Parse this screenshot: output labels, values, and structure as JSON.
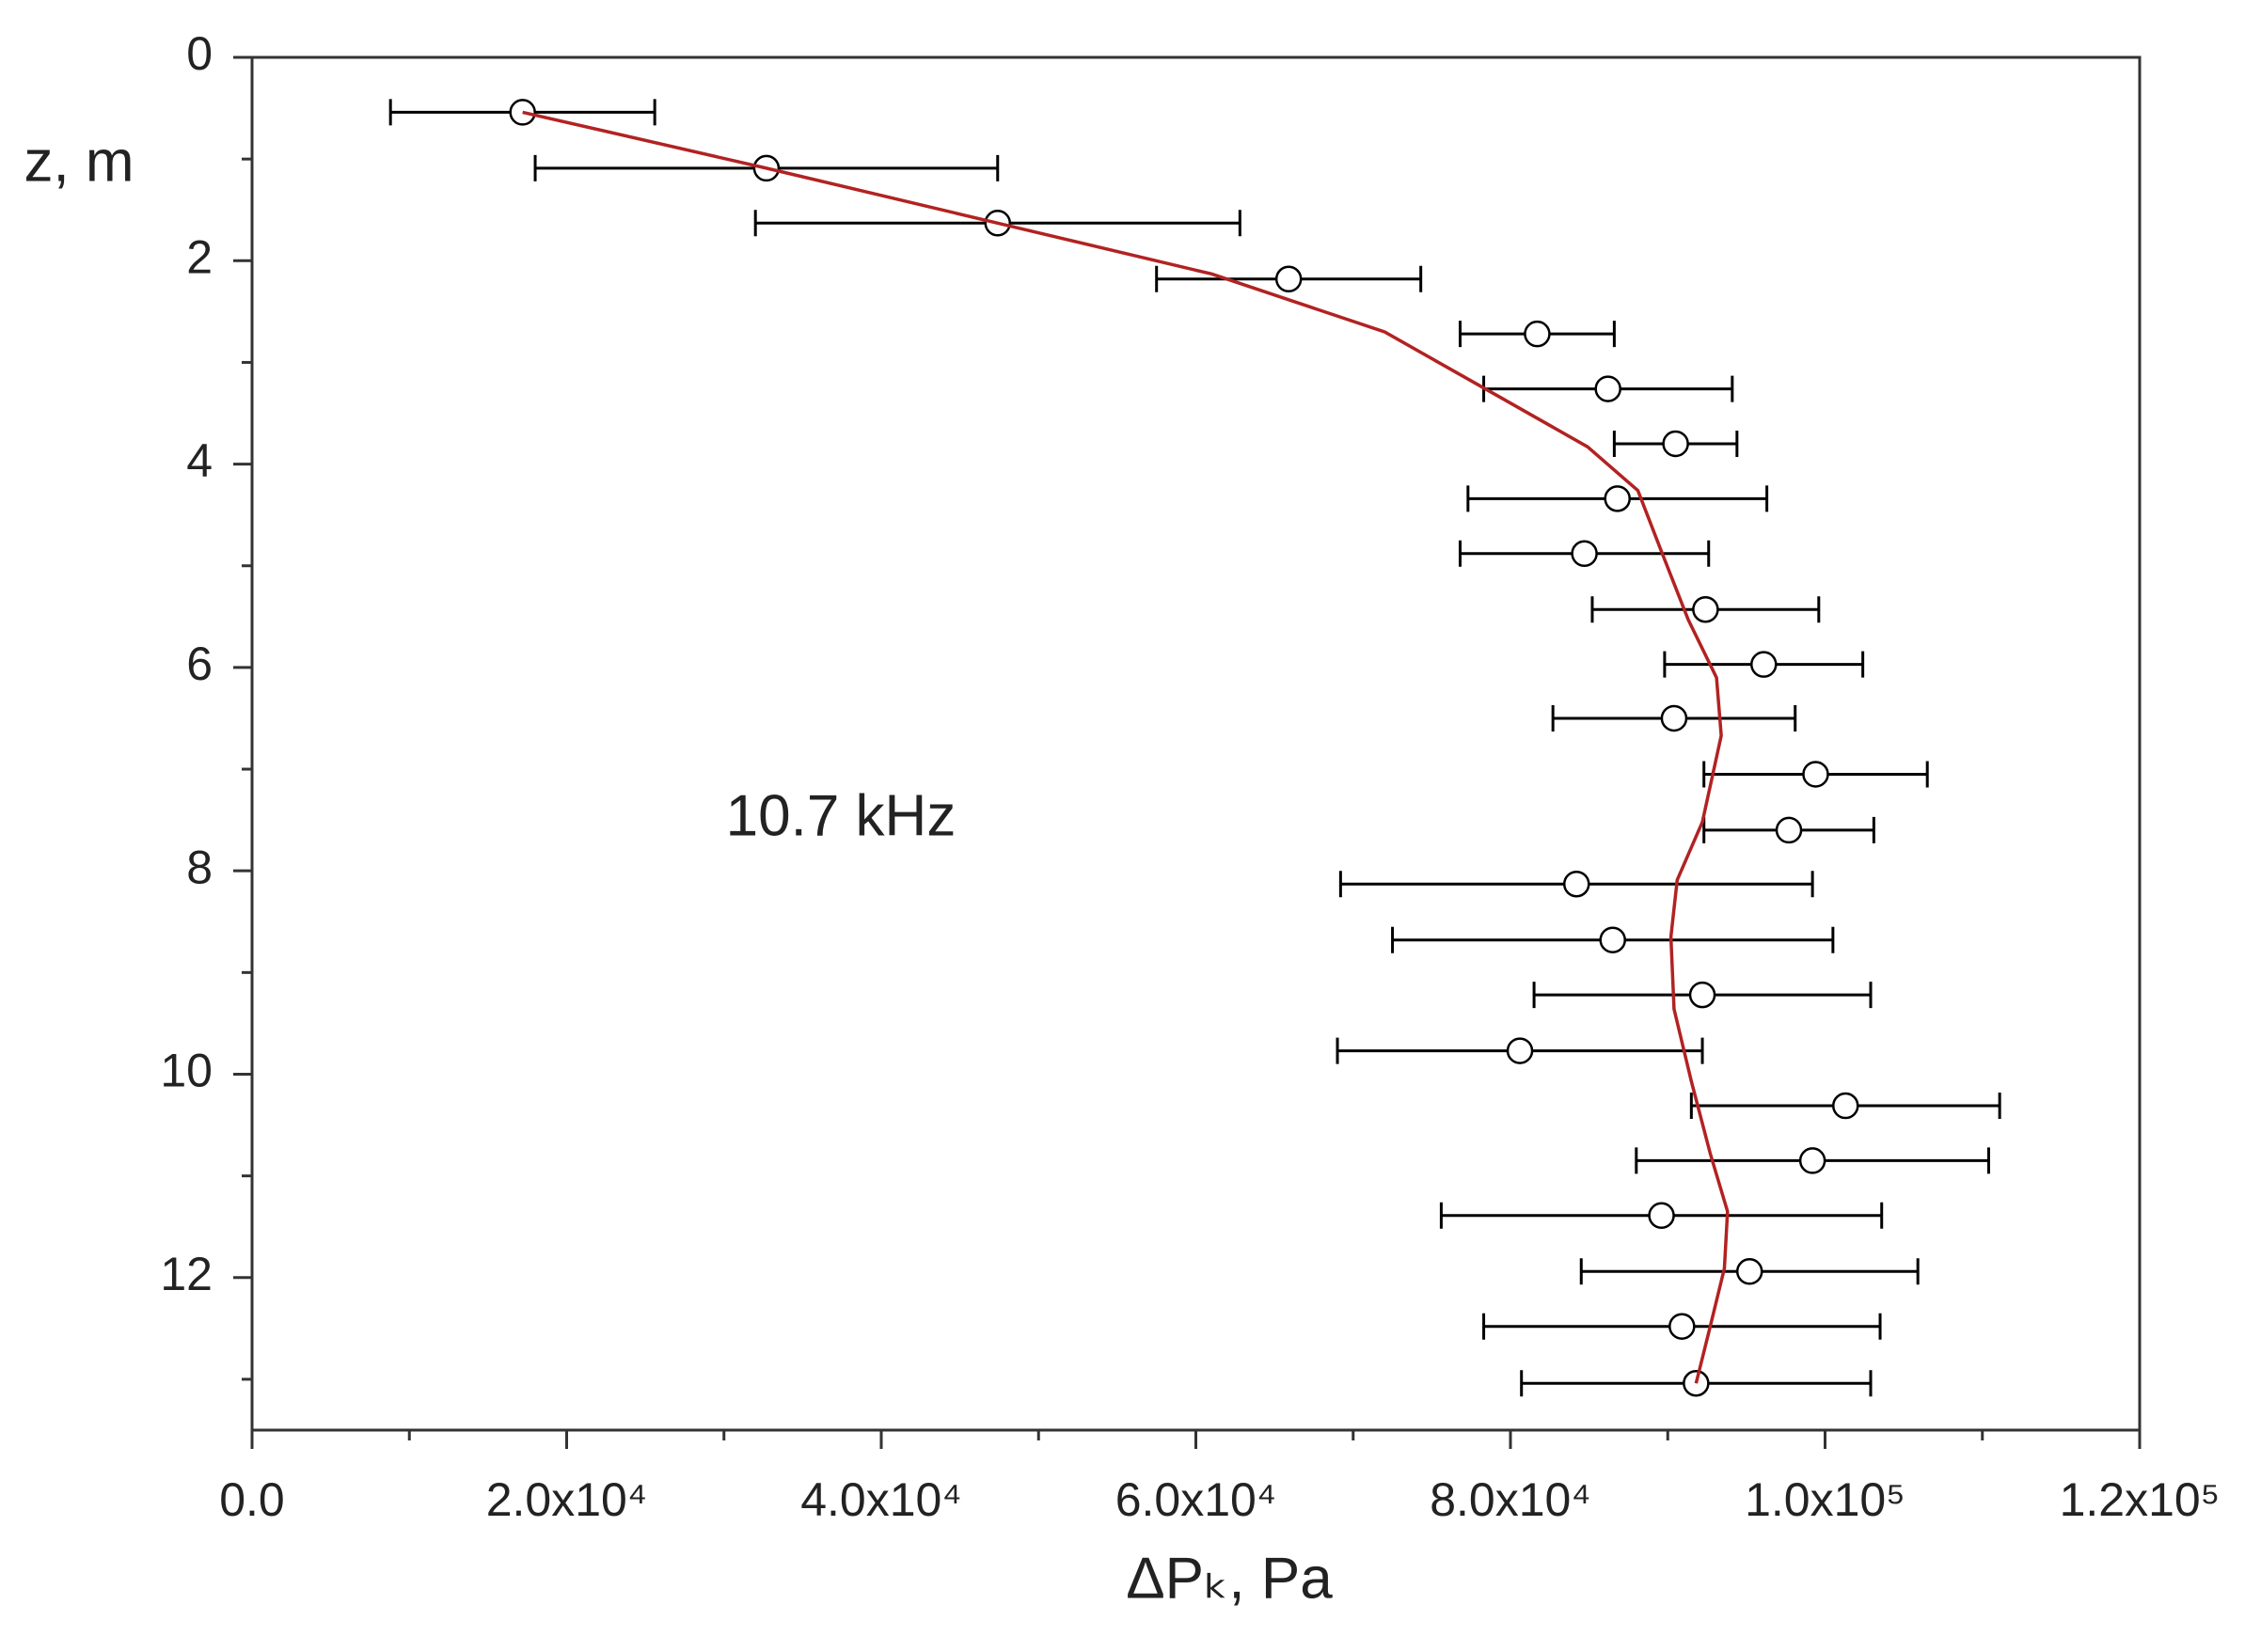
{
  "chart_data": {
    "type": "scatter",
    "x_label": "ΔPₖ, Pa",
    "y_label": "z, m",
    "annotation": "10.7 kHz",
    "xlim": [
      0,
      120000
    ],
    "ylim": [
      0,
      13.5
    ],
    "y_inverted": true,
    "xticks": [
      {
        "value": 0,
        "label": "0.0"
      },
      {
        "value": 20000,
        "label": "2.0x10⁴"
      },
      {
        "value": 40000,
        "label": "4.0x10⁴"
      },
      {
        "value": 60000,
        "label": "6.0x10⁴"
      },
      {
        "value": 80000,
        "label": "8.0x10⁴"
      },
      {
        "value": 100000,
        "label": "1.0x10⁵"
      },
      {
        "value": 120000,
        "label": "1.2x10⁵"
      }
    ],
    "xminorticks": [
      10000,
      30000,
      50000,
      70000,
      90000,
      110000
    ],
    "yticks": [
      0,
      2,
      4,
      6,
      8,
      10,
      12
    ],
    "yminorticks": [
      1,
      3,
      5,
      7,
      9,
      11,
      13
    ],
    "series": [
      {
        "mode": "markers",
        "color": "#000000",
        "x": [
          17200,
          32700,
          47400,
          65900,
          81700,
          86200,
          90500,
          86800,
          84700,
          92400,
          96100,
          90400,
          99400,
          97700,
          84200,
          86500,
          92200,
          80600,
          101300,
          99200,
          89600,
          95200,
          90900,
          91800
        ],
        "values": [
          0.54,
          1.09,
          1.63,
          2.18,
          2.72,
          3.26,
          3.8,
          4.34,
          4.88,
          5.43,
          5.97,
          6.5,
          7.05,
          7.6,
          8.13,
          8.68,
          9.22,
          9.77,
          10.31,
          10.85,
          11.39,
          11.94,
          12.48,
          13.04
        ],
        "xerr": [
          8400,
          14700,
          15400,
          8400,
          4900,
          7900,
          3900,
          9500,
          7900,
          7200,
          6300,
          7700,
          7100,
          5400,
          15000,
          14000,
          10700,
          11600,
          9800,
          11200,
          14000,
          10700,
          12600,
          11100
        ]
      },
      {
        "mode": "line",
        "color": "#b22222",
        "x": [
          17200,
          32700,
          47400,
          61000,
          72000,
          78400,
          84900,
          88100,
          89500,
          91300,
          93100,
          93400,
          92200,
          90600,
          90200,
          90400,
          91500,
          92700,
          93800,
          93600,
          92700,
          91800
        ],
        "values": [
          0.54,
          1.09,
          1.63,
          2.13,
          2.7,
          3.26,
          3.83,
          4.26,
          4.82,
          5.53,
          6.1,
          6.67,
          7.52,
          8.09,
          8.65,
          9.36,
          10.07,
          10.78,
          11.35,
          11.91,
          12.48,
          13.04
        ]
      }
    ]
  }
}
